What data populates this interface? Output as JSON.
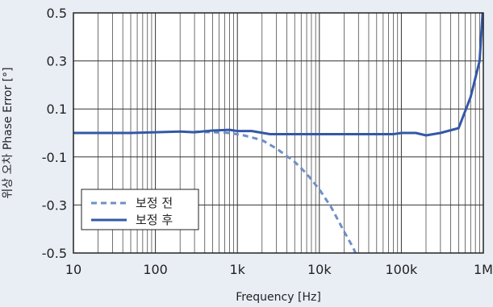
{
  "chart_data": {
    "type": "line",
    "title": "",
    "xlabel": "Frequency [Hz]",
    "ylabel": "위상 오차 Phase Error [°]",
    "x_scale": "log",
    "xlim": [
      10,
      1000000
    ],
    "ylim": [
      -0.5,
      0.5
    ],
    "x_ticks": [
      10,
      100,
      1000,
      10000,
      100000,
      1000000
    ],
    "x_tick_labels": [
      "10",
      "100",
      "1k",
      "10k",
      "100k",
      "1M"
    ],
    "y_ticks": [
      0.5,
      0.3,
      0.1,
      -0.1,
      -0.3,
      -0.5
    ],
    "y_tick_labels": [
      "0.5",
      "0.3",
      "0.1",
      "-0.1",
      "-0.3",
      "-0.5"
    ],
    "grid": true,
    "legend_position": "bottom-left",
    "series": [
      {
        "name": "보정 전",
        "style": "dashed",
        "color": "#6f8fc8",
        "x": [
          300,
          500,
          800,
          1200,
          2000,
          3000,
          5000,
          7000,
          10000,
          14000,
          20000,
          26000,
          30000
        ],
        "y": [
          0.005,
          0.003,
          0.0,
          -0.01,
          -0.03,
          -0.065,
          -0.12,
          -0.17,
          -0.235,
          -0.31,
          -0.41,
          -0.48,
          -0.53
        ]
      },
      {
        "name": "보정 후",
        "style": "solid",
        "color": "#3458a6",
        "x": [
          10,
          50,
          100,
          200,
          300,
          500,
          800,
          1000,
          1500,
          2500,
          5000,
          10000,
          30000,
          80000,
          100000,
          150000,
          200000,
          300000,
          500000,
          700000,
          900000,
          1000000
        ],
        "y": [
          0.0,
          0.0,
          0.003,
          0.006,
          0.003,
          0.01,
          0.013,
          0.008,
          0.008,
          -0.005,
          -0.005,
          -0.005,
          -0.005,
          -0.005,
          0.0,
          0.0,
          -0.01,
          0.0,
          0.02,
          0.15,
          0.3,
          0.55
        ]
      }
    ]
  }
}
